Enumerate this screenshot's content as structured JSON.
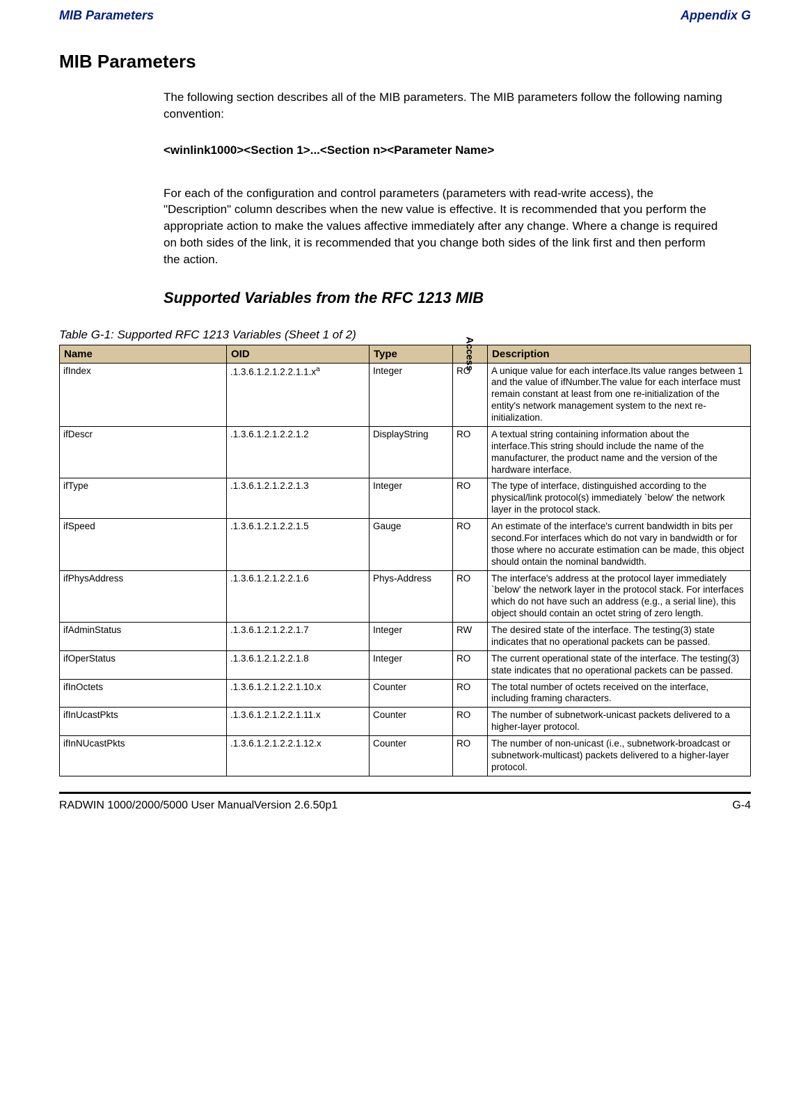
{
  "header": {
    "left": "MIB Parameters",
    "right": "Appendix G"
  },
  "h1": "MIB Parameters",
  "intro": "The following section describes all of the MIB parameters. The MIB parameters follow the following naming convention:",
  "convention": "<winlink1000><Section 1>...<Section n><Parameter Name>",
  "para2": "For each of the configuration and control parameters (parameters with read-write access), the \"Description\" column describes when the new value is effective. It is recommended that you perform the appropriate action to make the values affective immediately after any change. Where a change is required on both sides of the link, it is recommended that you change both sides of the link first and then perform the action.",
  "h2": "Supported Variables from the RFC 1213 MIB",
  "table": {
    "caption": "Table G-1: Supported RFC 1213 Variables (Sheet 1 of 2)",
    "columns": {
      "name": "Name",
      "oid": "OID",
      "type": "Type",
      "access": "Access",
      "desc": "Description"
    },
    "rows": [
      {
        "name": "ifIndex",
        "oid": ".1.3.6.1.2.1.2.2.1.1.x",
        "oid_sup": "a",
        "type": "Integer",
        "access": "RO",
        "desc": "A unique value for each interface.Its value ranges between 1 and the value of ifNumber.The value for each interface must remain constant at least from one re-initialization of the entity's network management system to the next re-initialization."
      },
      {
        "name": "ifDescr",
        "oid": ".1.3.6.1.2.1.2.2.1.2",
        "type": "DisplayString",
        "access": "RO",
        "desc": "A textual string containing information about the interface.This string should include the name of the manufacturer, the product name and the version of the hardware interface."
      },
      {
        "name": "ifType",
        "oid": ".1.3.6.1.2.1.2.2.1.3",
        "type": "Integer",
        "access": "RO",
        "desc": "The type of interface, distinguished according to the physical/link protocol(s) immediately `below' the network layer in the protocol stack."
      },
      {
        "name": "ifSpeed",
        "oid": ".1.3.6.1.2.1.2.2.1.5",
        "type": "Gauge",
        "access": "RO",
        "desc": "An estimate of the interface's current bandwidth in bits per second.For interfaces which do not vary in bandwidth or for those where no accurate estimation can be made, this object should ontain the nominal bandwidth."
      },
      {
        "name": "ifPhysAddress",
        "oid": ".1.3.6.1.2.1.2.2.1.6",
        "type": "Phys-Address",
        "access": "RO",
        "desc": "The interface's address at the protocol layer immediately `below' the network layer in the protocol stack. For interfaces which do not have such an address (e.g., a serial line), this object should contain an octet string of zero length."
      },
      {
        "name": "ifAdminStatus",
        "oid": ".1.3.6.1.2.1.2.2.1.7",
        "type": "Integer",
        "access": "RW",
        "desc": "The desired state of the interface. The testing(3) state indicates that no operational packets can be passed."
      },
      {
        "name": "ifOperStatus",
        "oid": ".1.3.6.1.2.1.2.2.1.8",
        "type": "Integer",
        "access": "RO",
        "desc": "The current operational state of the interface. The testing(3) state indicates that no operational packets can be passed."
      },
      {
        "name": "ifInOctets",
        "oid": ".1.3.6.1.2.1.2.2.1.10.x",
        "type": "Counter",
        "access": "RO",
        "desc": "The total number of octets received on the interface, including framing characters."
      },
      {
        "name": "ifInUcastPkts",
        "oid": ".1.3.6.1.2.1.2.2.1.11.x",
        "type": "Counter",
        "access": "RO",
        "desc": "The number of subnetwork-unicast packets delivered to a higher-layer protocol."
      },
      {
        "name": "ifInNUcastPkts",
        "oid": ".1.3.6.1.2.1.2.2.1.12.x",
        "type": "Counter",
        "access": "RO",
        "desc": "The number of non-unicast (i.e., subnetwork-broadcast or subnetwork-multicast) packets delivered to a higher-layer protocol."
      }
    ]
  },
  "footer": {
    "left": "RADWIN 1000/2000/5000 User ManualVersion  2.6.50p1",
    "right": "G-4"
  }
}
